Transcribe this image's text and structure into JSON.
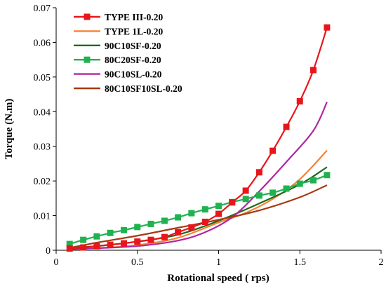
{
  "chart_data": {
    "type": "line",
    "xlabel": "Rotational speed ( rps)",
    "ylabel": "Torque (N.m)",
    "xlim": [
      0,
      2
    ],
    "ylim": [
      0,
      0.07
    ],
    "xticks": [
      0,
      0.5,
      1,
      1.5,
      2
    ],
    "xtick_labels": [
      "0",
      "0.5",
      "1",
      "1.5",
      "2"
    ],
    "yticks": [
      0,
      0.01,
      0.02,
      0.03,
      0.04,
      0.05,
      0.06,
      0.07
    ],
    "ytick_labels": [
      "0",
      "0.01",
      "0.02",
      "0.03",
      "0.04",
      "0.05",
      "0.06",
      "0.07"
    ],
    "grid": false,
    "legend_position": "top-left",
    "series": [
      {
        "name": "TYPE III-0.20",
        "color": "#e8161b",
        "marker": "square",
        "x": [
          0.083,
          0.167,
          0.25,
          0.333,
          0.417,
          0.5,
          0.583,
          0.667,
          0.75,
          0.833,
          0.917,
          1.0,
          1.083,
          1.167,
          1.25,
          1.333,
          1.417,
          1.5,
          1.583,
          1.667
        ],
        "y": [
          0.0005,
          0.0008,
          0.0012,
          0.0016,
          0.002,
          0.0025,
          0.003,
          0.0038,
          0.0052,
          0.0066,
          0.0082,
          0.0105,
          0.0138,
          0.0172,
          0.0225,
          0.0287,
          0.0356,
          0.043,
          0.052,
          0.0643
        ]
      },
      {
        "name": "TYPE 1L-0.20",
        "color": "#f58235",
        "marker": "none",
        "x": [
          0.083,
          0.25,
          0.5,
          0.75,
          1.0,
          1.167,
          1.333,
          1.5,
          1.667
        ],
        "y": [
          0.0004,
          0.0006,
          0.0015,
          0.0036,
          0.008,
          0.0108,
          0.0148,
          0.0205,
          0.0288
        ]
      },
      {
        "name": "90C10SF-0.20",
        "color": "#1a6b1f",
        "marker": "none",
        "x": [
          0.083,
          0.25,
          0.5,
          0.75,
          1.0,
          1.25,
          1.5,
          1.667
        ],
        "y": [
          0.0007,
          0.0012,
          0.0025,
          0.0045,
          0.0085,
          0.0135,
          0.019,
          0.024
        ]
      },
      {
        "name": "80C20SF-0.20",
        "color": "#20b251",
        "marker": "square",
        "x": [
          0.083,
          0.167,
          0.25,
          0.333,
          0.417,
          0.5,
          0.583,
          0.667,
          0.75,
          0.833,
          0.917,
          1.0,
          1.083,
          1.167,
          1.25,
          1.333,
          1.417,
          1.5,
          1.583,
          1.667
        ],
        "y": [
          0.0018,
          0.003,
          0.004,
          0.005,
          0.0058,
          0.0067,
          0.0076,
          0.0085,
          0.0095,
          0.0107,
          0.0118,
          0.0128,
          0.0139,
          0.0148,
          0.0158,
          0.0166,
          0.0178,
          0.0192,
          0.0202,
          0.0217
        ]
      },
      {
        "name": "90C10SL-0.20",
        "color": "#b0279e",
        "marker": "none",
        "x": [
          0.083,
          0.25,
          0.5,
          0.75,
          0.917,
          1.083,
          1.25,
          1.417,
          1.583,
          1.667
        ],
        "y": [
          0.0003,
          0.0006,
          0.0012,
          0.0028,
          0.0052,
          0.0095,
          0.017,
          0.0255,
          0.0345,
          0.0428
        ]
      },
      {
        "name": "80C10SF10SL-0.20",
        "color": "#a43a12",
        "marker": "none",
        "x": [
          0.083,
          0.25,
          0.5,
          0.75,
          1.0,
          1.25,
          1.5,
          1.667
        ],
        "y": [
          0.0007,
          0.0022,
          0.0042,
          0.0065,
          0.0088,
          0.0115,
          0.0153,
          0.0188
        ]
      }
    ]
  }
}
